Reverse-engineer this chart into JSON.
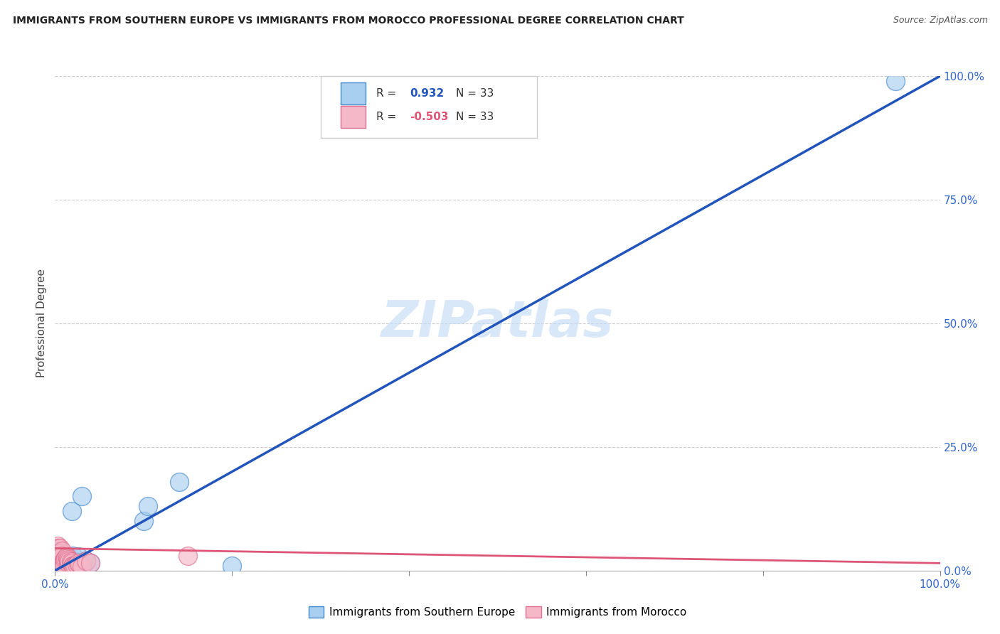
{
  "title": "IMMIGRANTS FROM SOUTHERN EUROPE VS IMMIGRANTS FROM MOROCCO PROFESSIONAL DEGREE CORRELATION CHART",
  "source": "Source: ZipAtlas.com",
  "ylabel": "Professional Degree",
  "yticks_labels": [
    "0.0%",
    "25.0%",
    "50.0%",
    "75.0%",
    "100.0%"
  ],
  "ytick_vals": [
    0.0,
    25.0,
    50.0,
    75.0,
    100.0
  ],
  "xticks_labels": [
    "0.0%",
    "",
    "",
    "",
    "",
    "100.0%"
  ],
  "xtick_vals": [
    0,
    20,
    40,
    60,
    80,
    100
  ],
  "xlim": [
    0,
    100
  ],
  "ylim": [
    0,
    100
  ],
  "R_blue": 0.932,
  "N_blue": 33,
  "R_pink": -0.503,
  "N_pink": 33,
  "blue_fill_color": "#A8CFF0",
  "pink_fill_color": "#F4B8C8",
  "blue_edge_color": "#4488CC",
  "pink_edge_color": "#E07090",
  "blue_line_color": "#2255BB",
  "pink_line_color": "#DD5577",
  "watermark": "ZIPatlas",
  "legend_blue_label": "Immigrants from Southern Europe",
  "legend_pink_label": "Immigrants from Morocco",
  "blue_scatter_x": [
    0.3,
    0.4,
    0.5,
    0.6,
    0.7,
    0.8,
    0.9,
    1.0,
    1.0,
    1.1,
    1.2,
    1.3,
    1.4,
    1.5,
    1.5,
    1.6,
    1.8,
    1.9,
    2.0,
    2.1,
    2.2,
    2.5,
    2.6,
    2.8,
    3.0,
    3.2,
    3.5,
    4.0,
    10.0,
    10.5,
    14.0,
    20.0,
    95.0
  ],
  "blue_scatter_y": [
    1.5,
    1.5,
    4.0,
    3.5,
    1.0,
    3.0,
    1.5,
    2.5,
    1.0,
    2.2,
    2.0,
    2.5,
    2.0,
    1.5,
    1.5,
    2.0,
    1.8,
    12.0,
    3.0,
    1.0,
    1.8,
    1.2,
    2.8,
    1.0,
    15.0,
    1.0,
    2.0,
    1.5,
    10.0,
    13.0,
    18.0,
    1.0,
    99.0
  ],
  "pink_scatter_x": [
    0.2,
    0.3,
    0.3,
    0.4,
    0.5,
    0.5,
    0.6,
    0.7,
    0.8,
    0.8,
    0.9,
    1.0,
    1.0,
    1.0,
    1.1,
    1.2,
    1.3,
    1.4,
    1.5,
    1.5,
    1.6,
    1.8,
    1.9,
    2.0,
    2.1,
    2.2,
    2.5,
    2.6,
    2.8,
    3.0,
    3.5,
    4.0,
    15.0
  ],
  "pink_scatter_y": [
    4.0,
    5.0,
    3.8,
    4.5,
    3.5,
    4.5,
    3.0,
    3.5,
    4.0,
    3.0,
    1.5,
    2.0,
    2.0,
    1.0,
    2.2,
    2.5,
    2.8,
    2.5,
    1.5,
    2.2,
    2.0,
    1.8,
    1.5,
    1.0,
    1.0,
    1.0,
    1.2,
    1.5,
    1.2,
    0.8,
    2.0,
    1.5,
    3.0
  ],
  "blue_line_x": [
    0,
    100
  ],
  "blue_line_y": [
    0,
    100
  ],
  "pink_line_x": [
    0,
    100
  ],
  "pink_line_y": [
    4.5,
    1.5
  ],
  "background_color": "#FFFFFF",
  "grid_color": "#CCCCCC",
  "title_color": "#222222",
  "source_color": "#555555",
  "axis_label_color": "#3366CC",
  "ylabel_color": "#444444"
}
